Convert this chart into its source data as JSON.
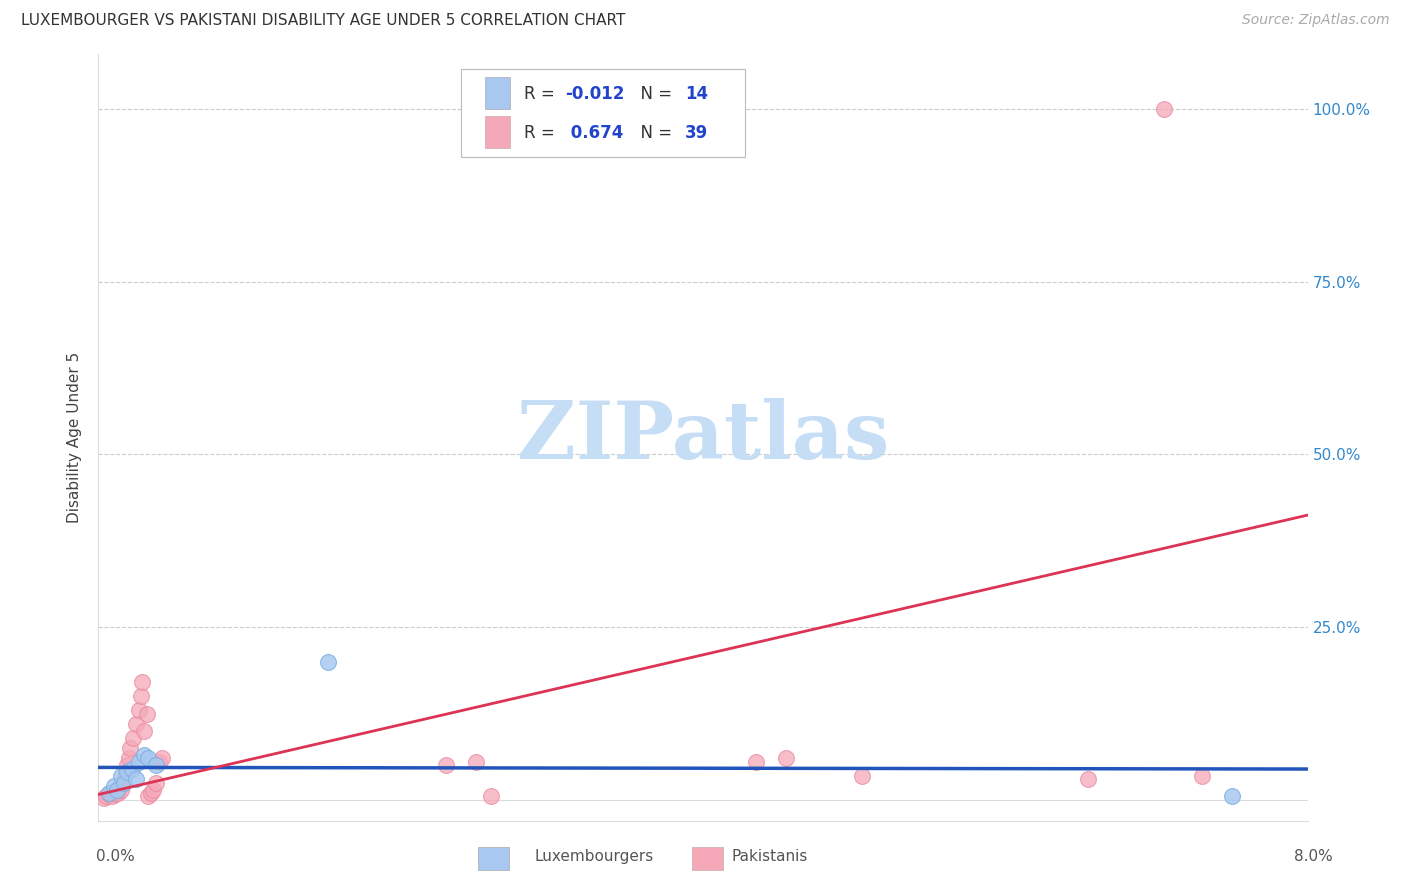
{
  "title": "LUXEMBOURGER VS PAKISTANI DISABILITY AGE UNDER 5 CORRELATION CHART",
  "source": "Source: ZipAtlas.com",
  "ylabel": "Disability Age Under 5",
  "xlim": [
    0.0,
    8.0
  ],
  "ylim": [
    -3.0,
    108.0
  ],
  "yticks": [
    0,
    25,
    50,
    75,
    100
  ],
  "grid_color": "#cccccc",
  "background_color": "#ffffff",
  "lux_color": "#a8c8f0",
  "pak_color": "#f5a8b8",
  "lux_edge_color": "#7ab0e0",
  "pak_edge_color": "#e888a0",
  "lux_line_color": "#2255bb",
  "pak_line_color": "#dd3355",
  "lux_R": -0.012,
  "lux_N": 14,
  "pak_R": 0.674,
  "pak_N": 39,
  "lux_x": [
    0.07,
    0.1,
    0.12,
    0.15,
    0.17,
    0.19,
    0.22,
    0.25,
    0.27,
    0.3,
    0.33,
    0.38,
    1.52,
    7.5
  ],
  "lux_y": [
    1.0,
    2.0,
    1.5,
    3.5,
    2.5,
    4.0,
    4.5,
    3.0,
    5.5,
    6.5,
    6.0,
    5.0,
    20.0,
    0.5
  ],
  "pak_x": [
    0.04,
    0.05,
    0.07,
    0.08,
    0.09,
    0.1,
    0.11,
    0.12,
    0.13,
    0.14,
    0.15,
    0.16,
    0.17,
    0.18,
    0.19,
    0.2,
    0.21,
    0.23,
    0.25,
    0.27,
    0.28,
    0.29,
    0.3,
    0.32,
    0.33,
    0.35,
    0.36,
    0.38,
    0.4,
    0.42,
    2.3,
    2.5,
    2.6,
    4.35,
    4.55,
    5.05,
    6.55,
    7.05,
    7.3
  ],
  "pak_y": [
    0.3,
    0.5,
    0.8,
    1.0,
    0.5,
    1.2,
    0.8,
    1.5,
    1.0,
    2.0,
    1.5,
    2.5,
    3.0,
    4.0,
    5.0,
    6.0,
    7.5,
    9.0,
    11.0,
    13.0,
    15.0,
    17.0,
    10.0,
    12.5,
    0.5,
    1.0,
    1.5,
    2.5,
    5.5,
    6.0,
    5.0,
    5.5,
    0.5,
    5.5,
    6.0,
    3.5,
    3.0,
    100.0,
    3.5
  ],
  "watermark_text": "ZIPatlas",
  "watermark_color": "#c5ddf5",
  "marker_size": 130,
  "title_fontsize": 11,
  "source_fontsize": 10,
  "ylabel_fontsize": 11,
  "ytick_fontsize": 11,
  "xtick_label_fontsize": 11,
  "legend_text_color_blue": "#2244cc",
  "legend_text_color_dark": "#333333",
  "legend_num_color_blue": "#2244cc",
  "legend_num_color_pink": "#dd3355",
  "bottom_legend_labels": [
    "Luxembourgers",
    "Pakistanis"
  ]
}
